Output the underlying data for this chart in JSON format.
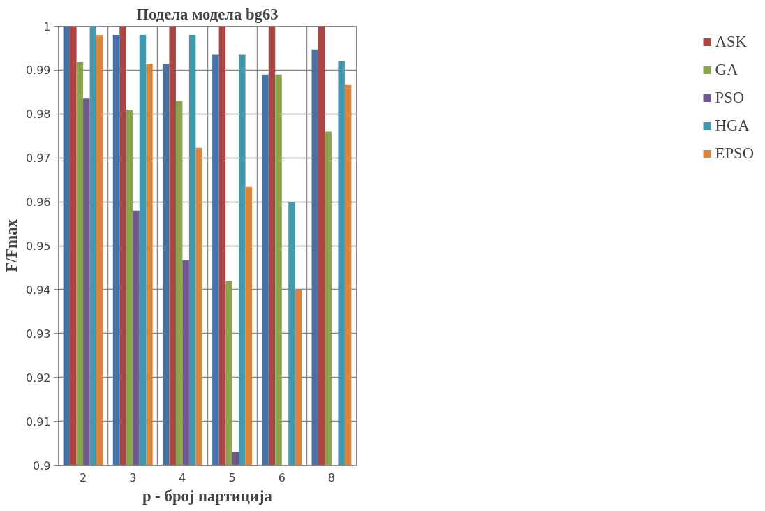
{
  "chart_data": {
    "type": "bar",
    "title": "Подела модела bg63",
    "xlabel": "p - број партиција",
    "ylabel": "F/Fmax",
    "categories": [
      "2",
      "3",
      "4",
      "5",
      "6",
      "8"
    ],
    "series": [
      {
        "color": "#4572a7",
        "values": [
          1,
          0.998,
          0.9915,
          0.9935,
          0.989,
          0.9947
        ]
      },
      {
        "name": "ASK",
        "color": "#aa4643",
        "values": [
          1,
          1,
          1,
          1,
          1,
          1
        ]
      },
      {
        "name": "GA",
        "color": "#89a54e",
        "values": [
          0.9918,
          0.981,
          0.983,
          0.942,
          0.989,
          0.976
        ]
      },
      {
        "name": "PSO",
        "color": "#71588f",
        "values": [
          0.9835,
          0.958,
          0.9467,
          0.903,
          null,
          null
        ]
      },
      {
        "name": "HGA",
        "color": "#4198af",
        "values": [
          1,
          0.998,
          0.998,
          0.9935,
          0.96,
          0.992
        ]
      },
      {
        "name": "EPSO",
        "color": "#db843d",
        "values": [
          0.998,
          0.9915,
          0.9723,
          0.9634,
          0.94,
          0.9866
        ]
      }
    ],
    "ylim": [
      0.9,
      1
    ],
    "yticks": [
      0.9,
      0.91,
      0.92,
      0.93,
      0.94,
      0.95,
      0.96,
      0.97,
      0.98,
      0.99,
      1
    ],
    "grid": true,
    "legend": "right"
  }
}
